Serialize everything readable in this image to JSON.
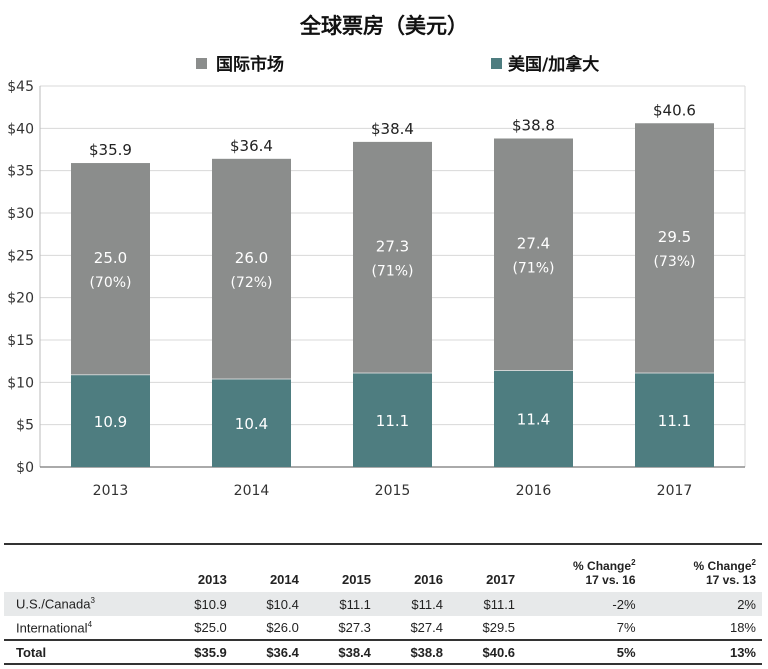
{
  "chart_data": {
    "type": "bar",
    "stacked": true,
    "title": "全球票房（美元）",
    "categories": [
      "2013",
      "2014",
      "2015",
      "2016",
      "2017"
    ],
    "series": [
      {
        "name": "美国/加拿大",
        "values": [
          10.9,
          10.4,
          11.1,
          11.4,
          11.1
        ],
        "color": "#4e7d80"
      },
      {
        "name": "国际市场",
        "values": [
          25.0,
          26.0,
          27.3,
          27.4,
          29.5
        ],
        "color": "#8b8d8c",
        "share_labels": [
          "(70%)",
          "(72%)",
          "(71%)",
          "(71%)",
          "(73%)"
        ]
      }
    ],
    "totals": [
      "$35.9",
      "$36.4",
      "$38.4",
      "$38.8",
      "$40.6"
    ],
    "us_labels": [
      "10.9",
      "10.4",
      "11.1",
      "11.4",
      "11.1"
    ],
    "intl_labels": [
      "25.0",
      "26.0",
      "27.3",
      "27.4",
      "29.5"
    ],
    "ylim": [
      0,
      45
    ],
    "yticks": [
      0,
      5,
      10,
      15,
      20,
      25,
      30,
      35,
      40,
      45
    ],
    "ytick_labels": [
      "$0",
      "$5",
      "$10",
      "$15",
      "$20",
      "$25",
      "$30",
      "$35",
      "$40",
      "$45"
    ],
    "legend": {
      "placement": "top",
      "items": [
        "国际市场",
        "美国/加拿大"
      ],
      "marker": "■"
    },
    "grid": true,
    "xlabel": "",
    "ylabel": ""
  },
  "table": {
    "headers": [
      "",
      "2013",
      "2014",
      "2015",
      "2016",
      "2017"
    ],
    "change16": {
      "line1": "% Change",
      "line2": "17 vs. 16",
      "note": "2"
    },
    "change13": {
      "line1": "% Change",
      "line2": "17 vs. 13",
      "note": "2"
    },
    "rows": [
      {
        "label": "U.S./Canada",
        "note": "3",
        "cells": [
          "$10.9",
          "$10.4",
          "$11.1",
          "$11.4",
          "$11.1",
          "-2%",
          "2%"
        ]
      },
      {
        "label": "International",
        "note": "4",
        "cells": [
          "$25.0",
          "$26.0",
          "$27.3",
          "$27.4",
          "$29.5",
          "7%",
          "18%"
        ]
      }
    ],
    "total": {
      "label": "Total",
      "cells": [
        "$35.9",
        "$36.4",
        "$38.4",
        "$38.8",
        "$40.6",
        "5%",
        "13%"
      ]
    }
  }
}
